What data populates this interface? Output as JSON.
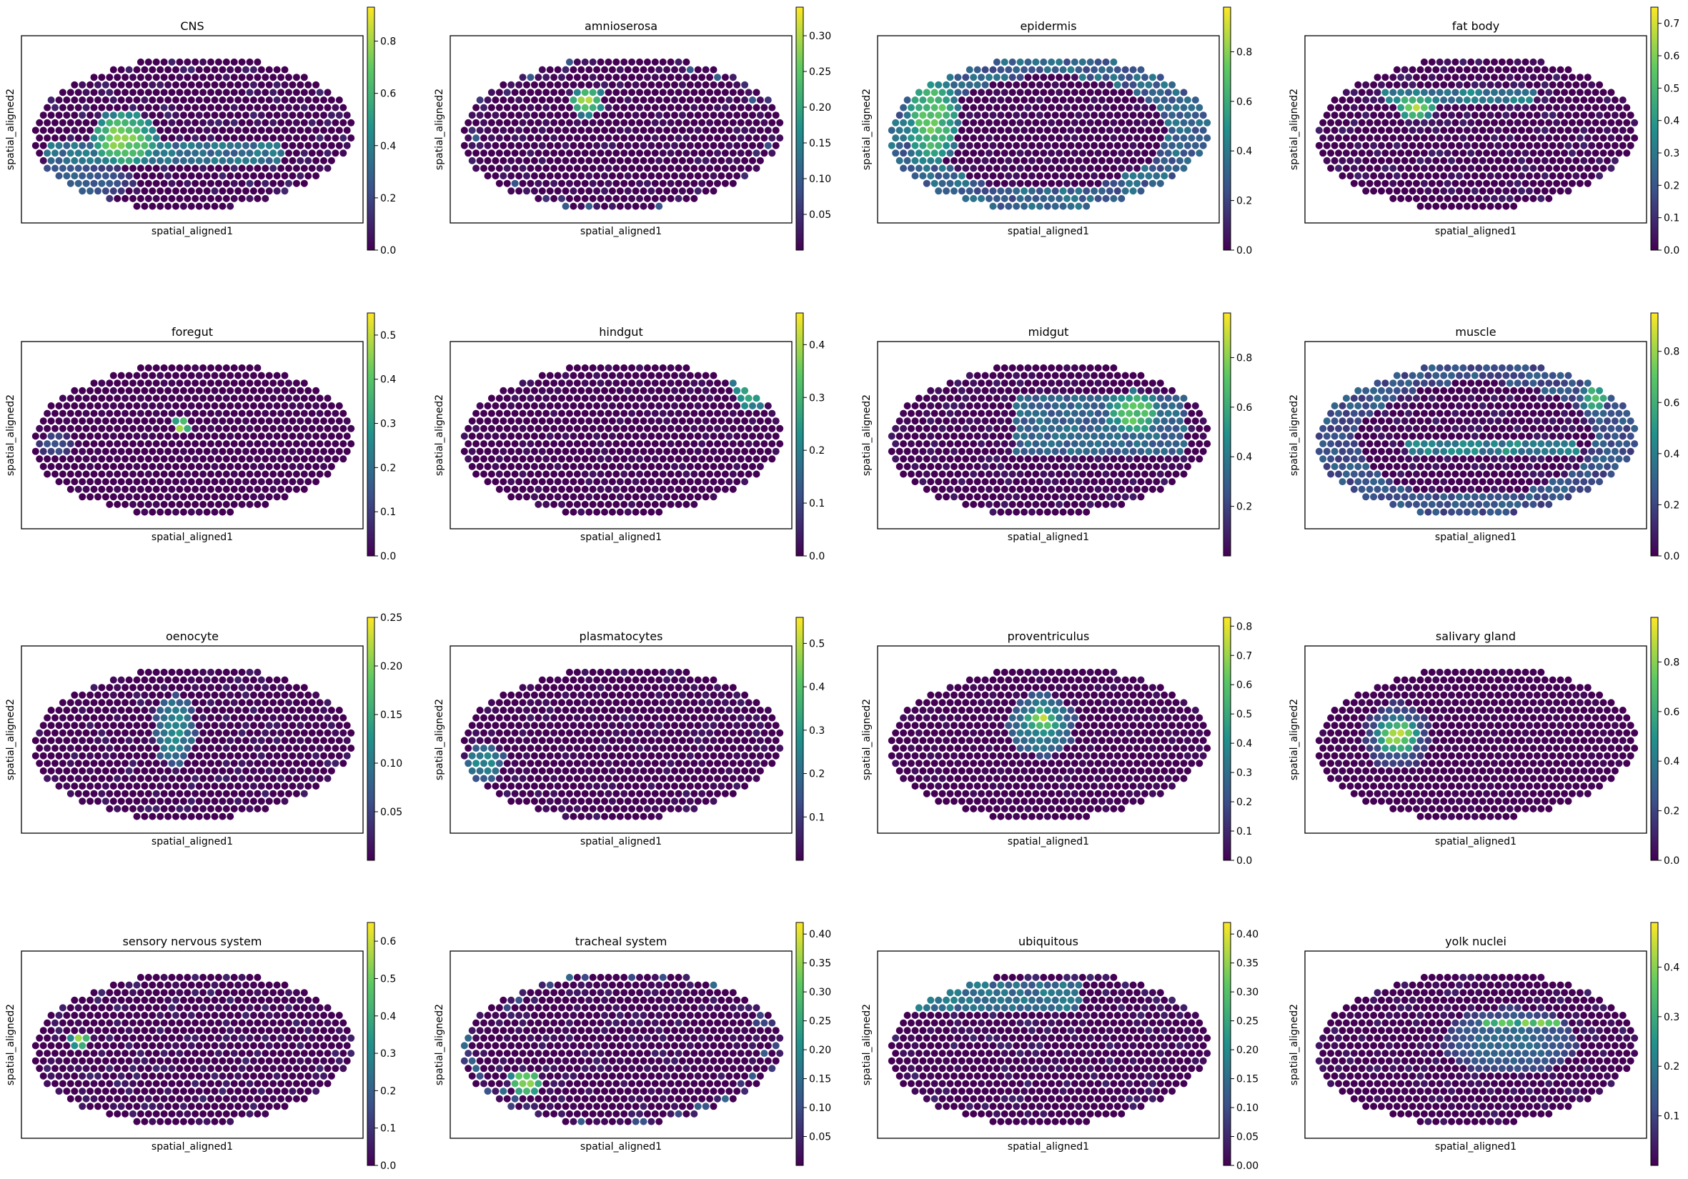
{
  "figure": {
    "rows": 4,
    "cols": 4
  },
  "colormap": [
    "#440154",
    "#3b528b",
    "#21918c",
    "#5ec962",
    "#fde725"
  ],
  "chart_data": [
    {
      "type": "scatter",
      "title": "CNS",
      "xlabel": "spatial_aligned1",
      "ylabel": "spatial_aligned2",
      "color_range": [
        0.0,
        0.93
      ],
      "colorbar_ticks": [
        "0.0",
        "0.2",
        "0.4",
        "0.6",
        "0.8"
      ],
      "colorbar_values": [
        0.0,
        0.2,
        0.4,
        0.6,
        0.8
      ],
      "seed": 11,
      "noise": 0.12,
      "pattern": [
        {
          "type": "band",
          "cx": 0.42,
          "cy": 0.62,
          "w": 0.7,
          "h": 0.12,
          "v": 0.45
        },
        {
          "type": "blob",
          "cx": 0.3,
          "cy": 0.55,
          "rx": 0.1,
          "ry": 0.15,
          "v": 0.9
        },
        {
          "type": "blob",
          "cx": 0.15,
          "cy": 0.78,
          "rx": 0.18,
          "ry": 0.12,
          "v": 0.35
        }
      ]
    },
    {
      "type": "scatter",
      "title": "amnioserosa",
      "xlabel": "spatial_aligned1",
      "ylabel": "spatial_aligned2",
      "color_range": [
        0.0,
        0.34
      ],
      "colorbar_ticks": [
        "0.05",
        "0.10",
        "0.15",
        "0.20",
        "0.25",
        "0.30"
      ],
      "colorbar_values": [
        0.05,
        0.1,
        0.15,
        0.2,
        0.25,
        0.3
      ],
      "seed": 22,
      "noise": 0.08,
      "pattern": [
        {
          "type": "blob",
          "cx": 0.4,
          "cy": 0.35,
          "rx": 0.05,
          "ry": 0.08,
          "v": 0.9
        },
        {
          "type": "edge",
          "v": 0.3
        }
      ]
    },
    {
      "type": "scatter",
      "title": "epidermis",
      "xlabel": "spatial_aligned1",
      "ylabel": "spatial_aligned2",
      "color_range": [
        0.0,
        0.98
      ],
      "colorbar_ticks": [
        "0.0",
        "0.2",
        "0.4",
        "0.6",
        "0.8"
      ],
      "colorbar_values": [
        0.0,
        0.2,
        0.4,
        0.6,
        0.8
      ],
      "seed": 33,
      "noise": 0.06,
      "pattern": [
        {
          "type": "ring",
          "v": 0.35
        },
        {
          "type": "blob",
          "cx": 0.16,
          "cy": 0.45,
          "rx": 0.08,
          "ry": 0.25,
          "v": 0.85
        }
      ]
    },
    {
      "type": "scatter",
      "title": "fat body",
      "xlabel": "spatial_aligned1",
      "ylabel": "spatial_aligned2",
      "color_range": [
        0.0,
        0.75
      ],
      "colorbar_ticks": [
        "0.0",
        "0.1",
        "0.2",
        "0.3",
        "0.4",
        "0.5",
        "0.6",
        "0.7"
      ],
      "colorbar_values": [
        0.0,
        0.1,
        0.2,
        0.3,
        0.4,
        0.5,
        0.6,
        0.7
      ],
      "seed": 44,
      "noise": 0.1,
      "pattern": [
        {
          "type": "band",
          "cx": 0.45,
          "cy": 0.33,
          "w": 0.45,
          "h": 0.1,
          "v": 0.5
        },
        {
          "type": "blob",
          "cx": 0.32,
          "cy": 0.38,
          "rx": 0.06,
          "ry": 0.07,
          "v": 0.95
        }
      ]
    },
    {
      "type": "scatter",
      "title": "foregut",
      "xlabel": "spatial_aligned1",
      "ylabel": "spatial_aligned2",
      "color_range": [
        0.0,
        0.55
      ],
      "colorbar_ticks": [
        "0.0",
        "0.1",
        "0.2",
        "0.3",
        "0.4",
        "0.5"
      ],
      "colorbar_values": [
        0.0,
        0.1,
        0.2,
        0.3,
        0.4,
        0.5
      ],
      "seed": 55,
      "noise": 0.03,
      "pattern": [
        {
          "type": "blob",
          "cx": 0.47,
          "cy": 0.45,
          "rx": 0.03,
          "ry": 0.05,
          "v": 0.95
        },
        {
          "type": "blob",
          "cx": 0.1,
          "cy": 0.55,
          "rx": 0.05,
          "ry": 0.06,
          "v": 0.3
        }
      ]
    },
    {
      "type": "scatter",
      "title": "hindgut",
      "xlabel": "spatial_aligned1",
      "ylabel": "spatial_aligned2",
      "color_range": [
        0.0,
        0.46
      ],
      "colorbar_ticks": [
        "0.0",
        "0.1",
        "0.2",
        "0.3",
        "0.4"
      ],
      "colorbar_values": [
        0.0,
        0.1,
        0.2,
        0.3,
        0.4
      ],
      "seed": 66,
      "noise": 0.06,
      "pattern": [
        {
          "type": "blob",
          "cx": 0.88,
          "cy": 0.22,
          "rx": 0.06,
          "ry": 0.15,
          "v": 0.8
        },
        {
          "type": "band",
          "cx": 0.6,
          "cy": 0.1,
          "w": 0.5,
          "h": 0.06,
          "v": 0.45
        }
      ]
    },
    {
      "type": "scatter",
      "title": "midgut",
      "xlabel": "spatial_aligned1",
      "ylabel": "spatial_aligned2",
      "color_range": [
        0.0,
        0.98
      ],
      "colorbar_ticks": [
        "0.2",
        "0.4",
        "0.6",
        "0.8"
      ],
      "colorbar_values": [
        0.2,
        0.4,
        0.6,
        0.8
      ],
      "seed": 77,
      "noise": 0.08,
      "pattern": [
        {
          "type": "band",
          "cx": 0.65,
          "cy": 0.45,
          "w": 0.5,
          "h": 0.35,
          "v": 0.4
        },
        {
          "type": "blob",
          "cx": 0.75,
          "cy": 0.38,
          "rx": 0.08,
          "ry": 0.12,
          "v": 0.85
        }
      ]
    },
    {
      "type": "scatter",
      "title": "muscle",
      "xlabel": "spatial_aligned1",
      "ylabel": "spatial_aligned2",
      "color_range": [
        0.0,
        0.95
      ],
      "colorbar_ticks": [
        "0.0",
        "0.2",
        "0.4",
        "0.6",
        "0.8"
      ],
      "colorbar_values": [
        0.0,
        0.2,
        0.4,
        0.6,
        0.8
      ],
      "seed": 88,
      "noise": 0.1,
      "pattern": [
        {
          "type": "ring",
          "v": 0.28
        },
        {
          "type": "band",
          "cx": 0.55,
          "cy": 0.55,
          "w": 0.5,
          "h": 0.08,
          "v": 0.55
        },
        {
          "type": "blob",
          "cx": 0.85,
          "cy": 0.3,
          "rx": 0.04,
          "ry": 0.08,
          "v": 0.8
        }
      ]
    },
    {
      "type": "scatter",
      "title": "oenocyte",
      "xlabel": "spatial_aligned1",
      "ylabel": "spatial_aligned2",
      "color_range": [
        0.0,
        0.25
      ],
      "colorbar_ticks": [
        "0.05",
        "0.10",
        "0.15",
        "0.20",
        "0.25"
      ],
      "colorbar_values": [
        0.05,
        0.1,
        0.15,
        0.2,
        0.25
      ],
      "seed": 99,
      "noise": 0.1,
      "pattern": [
        {
          "type": "blob",
          "cx": 0.45,
          "cy": 0.45,
          "rx": 0.06,
          "ry": 0.2,
          "v": 0.55
        }
      ]
    },
    {
      "type": "scatter",
      "title": "plasmatocytes",
      "xlabel": "spatial_aligned1",
      "ylabel": "spatial_aligned2",
      "color_range": [
        0.0,
        0.56
      ],
      "colorbar_ticks": [
        "0.1",
        "0.2",
        "0.3",
        "0.4",
        "0.5"
      ],
      "colorbar_values": [
        0.1,
        0.2,
        0.3,
        0.4,
        0.5
      ],
      "seed": 111,
      "noise": 0.08,
      "pattern": [
        {
          "type": "blob",
          "cx": 0.1,
          "cy": 0.62,
          "rx": 0.06,
          "ry": 0.1,
          "v": 0.55
        }
      ]
    },
    {
      "type": "scatter",
      "title": "proventriculus",
      "xlabel": "spatial_aligned1",
      "ylabel": "spatial_aligned2",
      "color_range": [
        0.0,
        0.83
      ],
      "colorbar_ticks": [
        "0.0",
        "0.1",
        "0.2",
        "0.3",
        "0.4",
        "0.5",
        "0.6",
        "0.7",
        "0.8"
      ],
      "colorbar_values": [
        0.0,
        0.1,
        0.2,
        0.3,
        0.4,
        0.5,
        0.6,
        0.7,
        0.8
      ],
      "seed": 122,
      "noise": 0.05,
      "pattern": [
        {
          "type": "blob",
          "cx": 0.48,
          "cy": 0.42,
          "rx": 0.1,
          "ry": 0.17,
          "v": 0.55
        },
        {
          "type": "blob",
          "cx": 0.48,
          "cy": 0.4,
          "rx": 0.05,
          "ry": 0.07,
          "v": 0.95
        }
      ]
    },
    {
      "type": "scatter",
      "title": "salivary gland",
      "xlabel": "spatial_aligned1",
      "ylabel": "spatial_aligned2",
      "color_range": [
        0.0,
        0.98
      ],
      "colorbar_ticks": [
        "0.0",
        "0.2",
        "0.4",
        "0.6",
        "0.8"
      ],
      "colorbar_values": [
        0.0,
        0.2,
        0.4,
        0.6,
        0.8
      ],
      "seed": 133,
      "noise": 0.03,
      "pattern": [
        {
          "type": "blob",
          "cx": 0.27,
          "cy": 0.48,
          "rx": 0.06,
          "ry": 0.1,
          "v": 0.95
        },
        {
          "type": "blob",
          "cx": 0.27,
          "cy": 0.48,
          "rx": 0.1,
          "ry": 0.18,
          "v": 0.35
        }
      ]
    },
    {
      "type": "scatter",
      "title": "sensory nervous system",
      "xlabel": "spatial_aligned1",
      "ylabel": "spatial_aligned2",
      "color_range": [
        0.0,
        0.65
      ],
      "colorbar_ticks": [
        "0.0",
        "0.1",
        "0.2",
        "0.3",
        "0.4",
        "0.5",
        "0.6"
      ],
      "colorbar_values": [
        0.0,
        0.1,
        0.2,
        0.3,
        0.4,
        0.5,
        0.6
      ],
      "seed": 144,
      "noise": 0.12,
      "pattern": [
        {
          "type": "blob",
          "cx": 0.17,
          "cy": 0.48,
          "rx": 0.03,
          "ry": 0.04,
          "v": 0.95
        }
      ]
    },
    {
      "type": "scatter",
      "title": "tracheal system",
      "xlabel": "spatial_aligned1",
      "ylabel": "spatial_aligned2",
      "color_range": [
        0.0,
        0.42
      ],
      "colorbar_ticks": [
        "0.05",
        "0.10",
        "0.15",
        "0.20",
        "0.25",
        "0.30",
        "0.35",
        "0.40"
      ],
      "colorbar_values": [
        0.05,
        0.1,
        0.15,
        0.2,
        0.25,
        0.3,
        0.35,
        0.4
      ],
      "seed": 155,
      "noise": 0.1,
      "pattern": [
        {
          "type": "blob",
          "cx": 0.22,
          "cy": 0.7,
          "rx": 0.05,
          "ry": 0.07,
          "v": 0.9
        },
        {
          "type": "edge",
          "v": 0.35
        }
      ]
    },
    {
      "type": "scatter",
      "title": "ubiquitous",
      "xlabel": "spatial_aligned1",
      "ylabel": "spatial_aligned2",
      "color_range": [
        0.0,
        0.42
      ],
      "colorbar_ticks": [
        "0.00",
        "0.05",
        "0.10",
        "0.15",
        "0.20",
        "0.25",
        "0.30",
        "0.35",
        "0.40"
      ],
      "colorbar_values": [
        0.0,
        0.05,
        0.1,
        0.15,
        0.2,
        0.25,
        0.3,
        0.35,
        0.4
      ],
      "seed": 166,
      "noise": 0.12,
      "pattern": [
        {
          "type": "band",
          "cx": 0.35,
          "cy": 0.25,
          "w": 0.5,
          "h": 0.15,
          "v": 0.45
        }
      ]
    },
    {
      "type": "scatter",
      "title": "yolk nuclei",
      "xlabel": "spatial_aligned1",
      "ylabel": "spatial_aligned2",
      "color_range": [
        0.0,
        0.49
      ],
      "colorbar_ticks": [
        "0.1",
        "0.2",
        "0.3",
        "0.4"
      ],
      "colorbar_values": [
        0.1,
        0.2,
        0.3,
        0.4
      ],
      "seed": 177,
      "noise": 0.1,
      "pattern": [
        {
          "type": "blob",
          "cx": 0.6,
          "cy": 0.48,
          "rx": 0.2,
          "ry": 0.18,
          "v": 0.4
        },
        {
          "type": "band",
          "cx": 0.63,
          "cy": 0.38,
          "w": 0.22,
          "h": 0.06,
          "v": 0.85
        }
      ]
    }
  ]
}
